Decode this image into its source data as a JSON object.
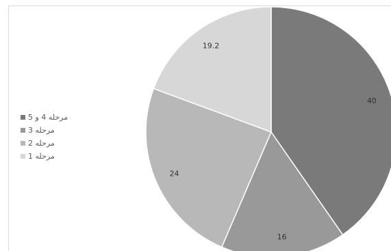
{
  "chart_data": {
    "type": "pie",
    "start_angle_deg": 0,
    "direction": "clockwise",
    "slices": [
      {
        "label": "مرحله 4 و 5",
        "value": 40,
        "color": "#7a7a7a"
      },
      {
        "label": "مرحله 3",
        "value": 16,
        "color": "#999999"
      },
      {
        "label": "مرحله 2",
        "value": 24,
        "color": "#b8b8b8"
      },
      {
        "label": "مرحله 1",
        "value": 19.2,
        "color": "#d7d7d7"
      }
    ],
    "data_labels": [
      "40",
      "16",
      "24",
      "19.2"
    ],
    "legend": {
      "placement": "left",
      "items": [
        "مرحله 4 و 5",
        "مرحله 3",
        "مرحله 2",
        "مرحله 1"
      ]
    },
    "title": "",
    "xlabel": "",
    "ylabel": ""
  }
}
